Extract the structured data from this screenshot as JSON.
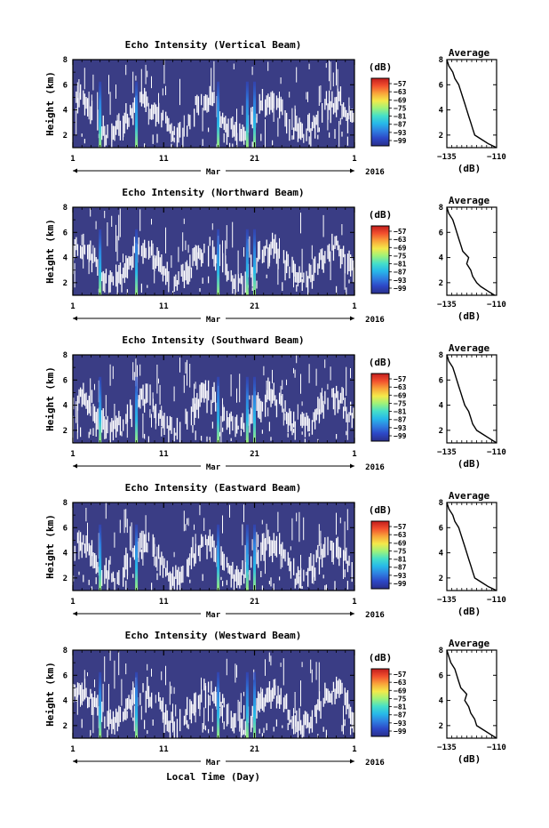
{
  "figure": {
    "x_label": "Local Time (Day)",
    "month_label": "Mar",
    "year_label": "2016",
    "day_ticks": [
      "1",
      "11",
      "21",
      "1"
    ],
    "colorbar_unit": "(dB)",
    "colorbar_ticks": [
      "-57",
      "-63",
      "-69",
      "-75",
      "-81",
      "-87",
      "-93",
      "-99"
    ],
    "colors": {
      "background": "#3a3d85",
      "echo_white": "#ffffff",
      "colormap": [
        "#2a2f8a",
        "#2d47c6",
        "#2f7fe0",
        "#27b9e9",
        "#45dfc9",
        "#9ef27a",
        "#f4e94a",
        "#f9a43a",
        "#f2502e",
        "#c21d1d"
      ]
    }
  },
  "chart_data": [
    {
      "type": "heatmap",
      "title": "Echo Intensity (Vertical Beam)",
      "ylabel": "Height (km)",
      "xlabel": "Local Time (Day)",
      "y_ticks": [
        2,
        4,
        6,
        8
      ],
      "ylim": [
        1.0,
        8.0
      ],
      "colorbar": {
        "unit": "(dB)",
        "ticks": [
          -57,
          -63,
          -69,
          -75,
          -81,
          -87,
          -93,
          -99
        ]
      },
      "bright_days": [
        4.0,
        8.0,
        17.0,
        20.2,
        21.0
      ],
      "average_profile": {
        "title": "Average",
        "xlabel": "(dB)",
        "x_ticks": [
          -135,
          -110
        ],
        "y_ticks": [
          2,
          4,
          6,
          8
        ],
        "ylim": [
          1.0,
          8.0
        ],
        "height_km": [
          1.0,
          1.3,
          1.7,
          2.0,
          2.5,
          3.0,
          3.5,
          4.0,
          4.5,
          5.0,
          5.5,
          6.0,
          6.5,
          7.0,
          7.5,
          8.0
        ],
        "intensity_db": [
          -110,
          -114,
          -118,
          -121,
          -122,
          -123,
          -124,
          -125,
          -126,
          -127,
          -128,
          -129,
          -131,
          -132,
          -134,
          -135
        ]
      }
    },
    {
      "type": "heatmap",
      "title": "Echo Intensity (Northward Beam)",
      "ylabel": "Height (km)",
      "xlabel": "Local Time (Day)",
      "y_ticks": [
        2,
        4,
        6,
        8
      ],
      "ylim": [
        1.0,
        8.0
      ],
      "colorbar": {
        "unit": "(dB)",
        "ticks": [
          -57,
          -63,
          -69,
          -75,
          -81,
          -87,
          -93,
          -99
        ]
      },
      "bright_days": [
        4.0,
        8.0,
        17.0,
        20.2,
        21.0
      ],
      "average_profile": {
        "title": "Average",
        "xlabel": "(dB)",
        "x_ticks": [
          -135,
          -110
        ],
        "y_ticks": [
          2,
          4,
          6,
          8
        ],
        "ylim": [
          1.0,
          8.0
        ],
        "height_km": [
          1.0,
          1.3,
          1.7,
          2.0,
          2.5,
          3.0,
          3.5,
          4.0,
          4.5,
          5.0,
          5.5,
          6.0,
          6.5,
          7.0,
          7.5,
          8.0
        ],
        "intensity_db": [
          -111,
          -114,
          -118,
          -120,
          -122,
          -123,
          -125,
          -124,
          -127,
          -128,
          -129,
          -130,
          -131,
          -132,
          -134,
          -135
        ]
      }
    },
    {
      "type": "heatmap",
      "title": "Echo Intensity (Southward Beam)",
      "ylabel": "Height (km)",
      "xlabel": "Local Time (Day)",
      "y_ticks": [
        2,
        4,
        6,
        8
      ],
      "ylim": [
        1.0,
        8.0
      ],
      "colorbar": {
        "unit": "(dB)",
        "ticks": [
          -57,
          -63,
          -69,
          -75,
          -81,
          -87,
          -93,
          -99
        ]
      },
      "bright_days": [
        4.0,
        8.0,
        17.0,
        20.2,
        21.0
      ],
      "average_profile": {
        "title": "Average",
        "xlabel": "(dB)",
        "x_ticks": [
          -135,
          -110
        ],
        "y_ticks": [
          2,
          4,
          6,
          8
        ],
        "ylim": [
          1.0,
          8.0
        ],
        "height_km": [
          1.0,
          1.3,
          1.7,
          2.0,
          2.5,
          3.0,
          3.5,
          4.0,
          4.5,
          5.0,
          5.5,
          6.0,
          6.5,
          7.0,
          7.5,
          8.0
        ],
        "intensity_db": [
          -110,
          -113,
          -117,
          -120,
          -122,
          -123,
          -124,
          -126,
          -127,
          -128,
          -129,
          -130,
          -131,
          -132,
          -134,
          -135
        ]
      }
    },
    {
      "type": "heatmap",
      "title": "Echo Intensity (Eastward Beam)",
      "ylabel": "Height (km)",
      "xlabel": "Local Time (Day)",
      "y_ticks": [
        2,
        4,
        6,
        8
      ],
      "ylim": [
        1.0,
        8.0
      ],
      "colorbar": {
        "unit": "(dB)",
        "ticks": [
          -57,
          -63,
          -69,
          -75,
          -81,
          -87,
          -93,
          -99
        ]
      },
      "bright_days": [
        4.0,
        8.0,
        17.0,
        20.2,
        21.0
      ],
      "average_profile": {
        "title": "Average",
        "xlabel": "(dB)",
        "x_ticks": [
          -135,
          -110
        ],
        "y_ticks": [
          2,
          4,
          6,
          8
        ],
        "ylim": [
          1.0,
          8.0
        ],
        "height_km": [
          1.0,
          1.3,
          1.7,
          2.0,
          2.5,
          3.0,
          3.5,
          4.0,
          4.5,
          5.0,
          5.5,
          6.0,
          6.5,
          7.0,
          7.5,
          8.0
        ],
        "intensity_db": [
          -110,
          -114,
          -118,
          -121,
          -122,
          -123,
          -124,
          -125,
          -126,
          -127,
          -128,
          -129,
          -131,
          -132,
          -134,
          -135
        ]
      }
    },
    {
      "type": "heatmap",
      "title": "Echo Intensity (Westward Beam)",
      "ylabel": "Height (km)",
      "xlabel": "Local Time (Day)",
      "y_ticks": [
        2,
        4,
        6,
        8
      ],
      "ylim": [
        1.0,
        8.0
      ],
      "colorbar": {
        "unit": "(dB)",
        "ticks": [
          -57,
          -63,
          -69,
          -75,
          -81,
          -87,
          -93,
          -99
        ]
      },
      "bright_days": [
        4.0,
        8.0,
        17.0,
        20.2,
        21.0
      ],
      "average_profile": {
        "title": "Average",
        "xlabel": "(dB)",
        "x_ticks": [
          -135,
          -110
        ],
        "y_ticks": [
          2,
          4,
          6,
          8
        ],
        "ylim": [
          1.0,
          8.0
        ],
        "height_km": [
          1.0,
          1.3,
          1.7,
          2.0,
          2.5,
          3.0,
          3.5,
          4.0,
          4.5,
          5.0,
          5.5,
          6.0,
          6.5,
          7.0,
          7.5,
          8.0
        ],
        "intensity_db": [
          -110,
          -113,
          -117,
          -120,
          -121,
          -123,
          -124,
          -126,
          -125,
          -128,
          -129,
          -130,
          -131,
          -133,
          -134,
          -135
        ]
      }
    }
  ]
}
